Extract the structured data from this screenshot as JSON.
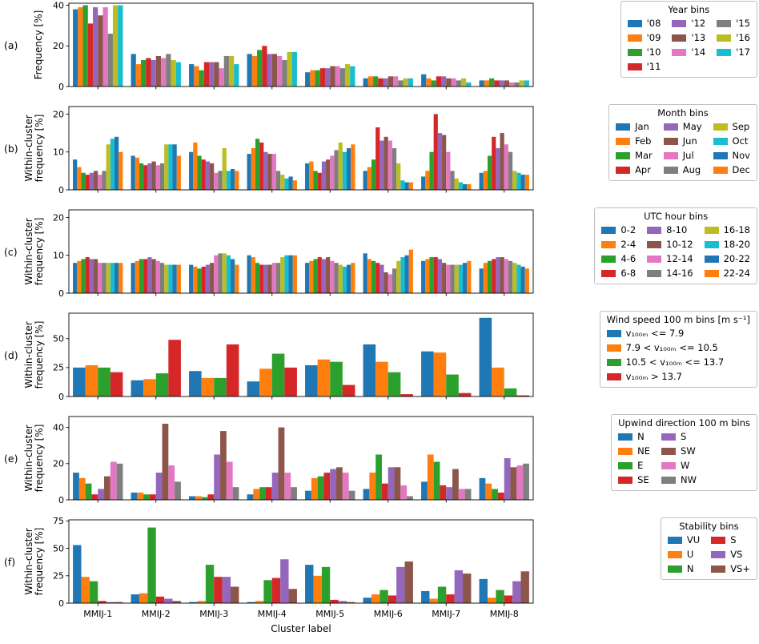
{
  "figure_meta": {
    "xlabel": "Cluster label"
  },
  "chart_data": [
    {
      "panel_label": "(a)",
      "type": "bar",
      "ylabel_lines": [
        "Frequency [%]"
      ],
      "xlabel": "",
      "ylim": [
        0,
        41
      ],
      "yticks": [
        0,
        20,
        40
      ],
      "categories": [
        "MMIJ-1",
        "MMIJ-2",
        "MMIJ-3",
        "MMIJ-4",
        "MMIJ-5",
        "MMIJ-6",
        "MMIJ-7",
        "MMIJ-8"
      ],
      "legend": {
        "title": "Year bins",
        "ncol": 3
      },
      "series": [
        {
          "name": "'08",
          "color": "#1f77b4",
          "values": [
            38,
            16,
            11,
            16,
            7,
            4,
            6,
            3
          ]
        },
        {
          "name": "'09",
          "color": "#ff7f0e",
          "values": [
            39,
            11,
            10,
            15,
            8,
            5,
            4,
            3
          ]
        },
        {
          "name": "'10",
          "color": "#2ca02c",
          "values": [
            40,
            13,
            8,
            18,
            8,
            5,
            3,
            4
          ]
        },
        {
          "name": "'11",
          "color": "#d62728",
          "values": [
            31,
            14,
            12,
            20,
            9,
            4,
            5,
            3
          ]
        },
        {
          "name": "'12",
          "color": "#9467bd",
          "values": [
            39,
            13,
            12,
            16,
            9,
            4,
            5,
            3
          ]
        },
        {
          "name": "'13",
          "color": "#8c564b",
          "values": [
            35,
            15,
            12,
            16,
            10,
            5,
            4,
            3
          ]
        },
        {
          "name": "'14",
          "color": "#e377c2",
          "values": [
            39,
            14,
            9,
            15,
            10,
            5,
            4,
            2
          ]
        },
        {
          "name": "'15",
          "color": "#7f7f7f",
          "values": [
            26,
            16,
            15,
            13,
            9,
            3,
            3,
            2
          ]
        },
        {
          "name": "'16",
          "color": "#bcbd22",
          "values": [
            40,
            13,
            15,
            17,
            11,
            4,
            4,
            3
          ]
        },
        {
          "name": "'17",
          "color": "#17becf",
          "values": [
            40,
            12,
            11,
            17,
            10,
            4,
            2,
            3
          ]
        }
      ]
    },
    {
      "panel_label": "(b)",
      "type": "bar",
      "ylabel_lines": [
        "Within-cluster",
        "frequency [%]"
      ],
      "xlabel": "",
      "ylim": [
        0,
        22
      ],
      "yticks": [
        0,
        10,
        20
      ],
      "categories": [
        "MMIJ-1",
        "MMIJ-2",
        "MMIJ-3",
        "MMIJ-4",
        "MMIJ-5",
        "MMIJ-6",
        "MMIJ-7",
        "MMIJ-8"
      ],
      "legend": {
        "title": "Month bins",
        "ncol": 3
      },
      "series": [
        {
          "name": "Jan",
          "color": "#1f77b4",
          "values": [
            8,
            9,
            10,
            9.5,
            7,
            5,
            3.5,
            4.5
          ]
        },
        {
          "name": "Feb",
          "color": "#ff7f0e",
          "values": [
            6,
            8.5,
            12.5,
            11,
            7.5,
            6,
            5,
            5
          ]
        },
        {
          "name": "Mar",
          "color": "#2ca02c",
          "values": [
            4.5,
            7,
            9,
            13.5,
            5,
            8,
            10,
            9
          ]
        },
        {
          "name": "Apr",
          "color": "#d62728",
          "values": [
            4,
            6.5,
            8,
            12.5,
            4.5,
            16.5,
            20,
            14
          ]
        },
        {
          "name": "May",
          "color": "#9467bd",
          "values": [
            4.5,
            7,
            7.5,
            10,
            7.5,
            13,
            15,
            11
          ]
        },
        {
          "name": "Jun",
          "color": "#8c564b",
          "values": [
            5,
            7.5,
            7,
            9.5,
            8,
            14,
            14.5,
            15
          ]
        },
        {
          "name": "Jul",
          "color": "#e377c2",
          "values": [
            4,
            6.5,
            4.5,
            9.5,
            9,
            13,
            10,
            12
          ]
        },
        {
          "name": "Aug",
          "color": "#7f7f7f",
          "values": [
            5,
            7,
            5,
            5,
            10.5,
            11,
            5,
            10
          ]
        },
        {
          "name": "Sep",
          "color": "#bcbd22",
          "values": [
            12,
            12,
            11,
            4,
            12.5,
            7,
            3,
            5
          ]
        },
        {
          "name": "Oct",
          "color": "#17becf",
          "values": [
            13.5,
            12,
            5,
            3,
            10,
            2.5,
            2,
            4.5
          ]
        },
        {
          "name": "Nov",
          "color": "#1f77b4",
          "values": [
            14,
            12,
            5.5,
            3.5,
            11,
            2,
            1.5,
            4
          ]
        },
        {
          "name": "Dec",
          "color": "#ff7f0e",
          "values": [
            10,
            9,
            5,
            2.5,
            12,
            2,
            1.5,
            4
          ]
        }
      ]
    },
    {
      "panel_label": "(c)",
      "type": "bar",
      "ylabel_lines": [
        "Within-cluster",
        "frequency [%]"
      ],
      "xlabel": "",
      "ylim": [
        0,
        22
      ],
      "yticks": [
        0,
        10,
        20
      ],
      "categories": [
        "MMIJ-1",
        "MMIJ-2",
        "MMIJ-3",
        "MMIJ-4",
        "MMIJ-5",
        "MMIJ-6",
        "MMIJ-7",
        "MMIJ-8"
      ],
      "legend": {
        "title": "UTC hour bins",
        "ncol": 3
      },
      "series": [
        {
          "name": "0-2",
          "color": "#1f77b4",
          "values": [
            8,
            8,
            7.5,
            10,
            8,
            10.5,
            8.5,
            6.5
          ]
        },
        {
          "name": "2-4",
          "color": "#ff7f0e",
          "values": [
            8.5,
            8.5,
            7,
            9.5,
            8.5,
            9,
            9,
            8
          ]
        },
        {
          "name": "4-6",
          "color": "#2ca02c",
          "values": [
            9,
            9,
            6.5,
            8,
            9,
            8.5,
            9.5,
            8.5
          ]
        },
        {
          "name": "6-8",
          "color": "#d62728",
          "values": [
            9.5,
            9,
            7,
            7.5,
            9.5,
            8,
            9.5,
            9
          ]
        },
        {
          "name": "8-10",
          "color": "#9467bd",
          "values": [
            9,
            9.5,
            7.5,
            7.5,
            9,
            7.5,
            9,
            9.5
          ]
        },
        {
          "name": "10-12",
          "color": "#8c564b",
          "values": [
            9,
            9,
            8,
            7.5,
            9.5,
            5.5,
            8,
            9.5
          ]
        },
        {
          "name": "12-14",
          "color": "#e377c2",
          "values": [
            8,
            8.5,
            10,
            8,
            8.5,
            5,
            7.5,
            9
          ]
        },
        {
          "name": "14-16",
          "color": "#7f7f7f",
          "values": [
            8,
            8,
            10.5,
            8,
            8,
            6.5,
            7.5,
            8.5
          ]
        },
        {
          "name": "16-18",
          "color": "#bcbd22",
          "values": [
            8,
            7.5,
            10.5,
            9.5,
            7.5,
            8.5,
            7.5,
            8
          ]
        },
        {
          "name": "18-20",
          "color": "#17becf",
          "values": [
            8,
            7.5,
            10,
            10,
            7,
            9.5,
            7.5,
            7.5
          ]
        },
        {
          "name": "20-22",
          "color": "#1f77b4",
          "values": [
            8,
            7.5,
            9,
            10,
            7.5,
            10,
            8,
            7
          ]
        },
        {
          "name": "22-24",
          "color": "#ff7f0e",
          "values": [
            8,
            7.5,
            7.5,
            10,
            8,
            11.5,
            8.5,
            6.5
          ]
        }
      ]
    },
    {
      "panel_label": "(d)",
      "type": "bar",
      "ylabel_lines": [
        "Within-cluster",
        "frequency [%]"
      ],
      "xlabel": "",
      "ylim": [
        0,
        72
      ],
      "yticks": [
        0,
        25,
        50
      ],
      "categories": [
        "MMIJ-1",
        "MMIJ-2",
        "MMIJ-3",
        "MMIJ-4",
        "MMIJ-5",
        "MMIJ-6",
        "MMIJ-7",
        "MMIJ-8"
      ],
      "legend": {
        "title": "Wind speed 100 m bins [m s⁻¹]",
        "ncol": 1
      },
      "series": [
        {
          "name": "v₁₀₀ₘ <= 7.9",
          "color": "#1f77b4",
          "values": [
            25,
            14,
            22,
            13,
            27,
            45,
            39,
            68
          ]
        },
        {
          "name": "7.9 < v₁₀₀ₘ <= 10.5",
          "color": "#ff7f0e",
          "values": [
            27,
            15,
            16,
            24,
            32,
            30,
            38,
            25
          ]
        },
        {
          "name": "10.5 < v₁₀₀ₘ <= 13.7",
          "color": "#2ca02c",
          "values": [
            25,
            20,
            16,
            37,
            30,
            21,
            19,
            7
          ]
        },
        {
          "name": "v₁₀₀ₘ > 13.7",
          "color": "#d62728",
          "values": [
            21,
            49,
            45,
            25,
            10,
            2,
            3,
            1
          ]
        }
      ]
    },
    {
      "panel_label": "(e)",
      "type": "bar",
      "ylabel_lines": [
        "Within-cluster",
        "frequency [%]"
      ],
      "xlabel": "",
      "ylim": [
        0,
        46
      ],
      "yticks": [
        0,
        20,
        40
      ],
      "categories": [
        "MMIJ-1",
        "MMIJ-2",
        "MMIJ-3",
        "MMIJ-4",
        "MMIJ-5",
        "MMIJ-6",
        "MMIJ-7",
        "MMIJ-8"
      ],
      "legend": {
        "title": "Upwind direction 100 m bins",
        "ncol": 2
      },
      "series": [
        {
          "name": "N",
          "color": "#1f77b4",
          "values": [
            15,
            4,
            2,
            3,
            5,
            6,
            10,
            12
          ]
        },
        {
          "name": "NE",
          "color": "#ff7f0e",
          "values": [
            12,
            4,
            2,
            6,
            12,
            15,
            25,
            9
          ]
        },
        {
          "name": "E",
          "color": "#2ca02c",
          "values": [
            9,
            3,
            1.5,
            7,
            13,
            25,
            21,
            6
          ]
        },
        {
          "name": "SE",
          "color": "#d62728",
          "values": [
            3,
            3,
            3,
            7,
            15,
            9,
            8,
            4
          ]
        },
        {
          "name": "S",
          "color": "#9467bd",
          "values": [
            6,
            15,
            25,
            15,
            17,
            18,
            7,
            23
          ]
        },
        {
          "name": "SW",
          "color": "#8c564b",
          "values": [
            13,
            42,
            38,
            40,
            18,
            18,
            17,
            18
          ]
        },
        {
          "name": "W",
          "color": "#e377c2",
          "values": [
            21,
            19,
            21,
            15,
            15,
            8,
            6,
            19
          ]
        },
        {
          "name": "NW",
          "color": "#7f7f7f",
          "values": [
            20,
            10,
            7,
            7,
            5,
            2,
            6,
            20
          ]
        }
      ]
    },
    {
      "panel_label": "(f)",
      "type": "bar",
      "ylabel_lines": [
        "Within-cluster",
        "frequency [%]"
      ],
      "xlabel": "Cluster label",
      "ylim": [
        0,
        76
      ],
      "yticks": [
        0,
        25,
        50,
        75
      ],
      "categories": [
        "MMIJ-1",
        "MMIJ-2",
        "MMIJ-3",
        "MMIJ-4",
        "MMIJ-5",
        "MMIJ-6",
        "MMIJ-7",
        "MMIJ-8"
      ],
      "legend": {
        "title": "Stability bins",
        "ncol": 2
      },
      "series": [
        {
          "name": "VU",
          "color": "#1f77b4",
          "values": [
            53,
            8,
            1,
            1,
            35,
            5,
            11,
            22
          ]
        },
        {
          "name": "U",
          "color": "#ff7f0e",
          "values": [
            24,
            9,
            2,
            2,
            25,
            8,
            4,
            5
          ]
        },
        {
          "name": "N",
          "color": "#2ca02c",
          "values": [
            20,
            69,
            35,
            21,
            33,
            12,
            15,
            12
          ]
        },
        {
          "name": "S",
          "color": "#d62728",
          "values": [
            2,
            6,
            24,
            23,
            3,
            7,
            8,
            7
          ]
        },
        {
          "name": "VS",
          "color": "#9467bd",
          "values": [
            1,
            4,
            24,
            40,
            2,
            33,
            30,
            20
          ]
        },
        {
          "name": "VS+",
          "color": "#8c564b",
          "values": [
            1,
            2,
            15,
            13,
            1,
            38,
            27,
            29
          ]
        }
      ]
    }
  ]
}
